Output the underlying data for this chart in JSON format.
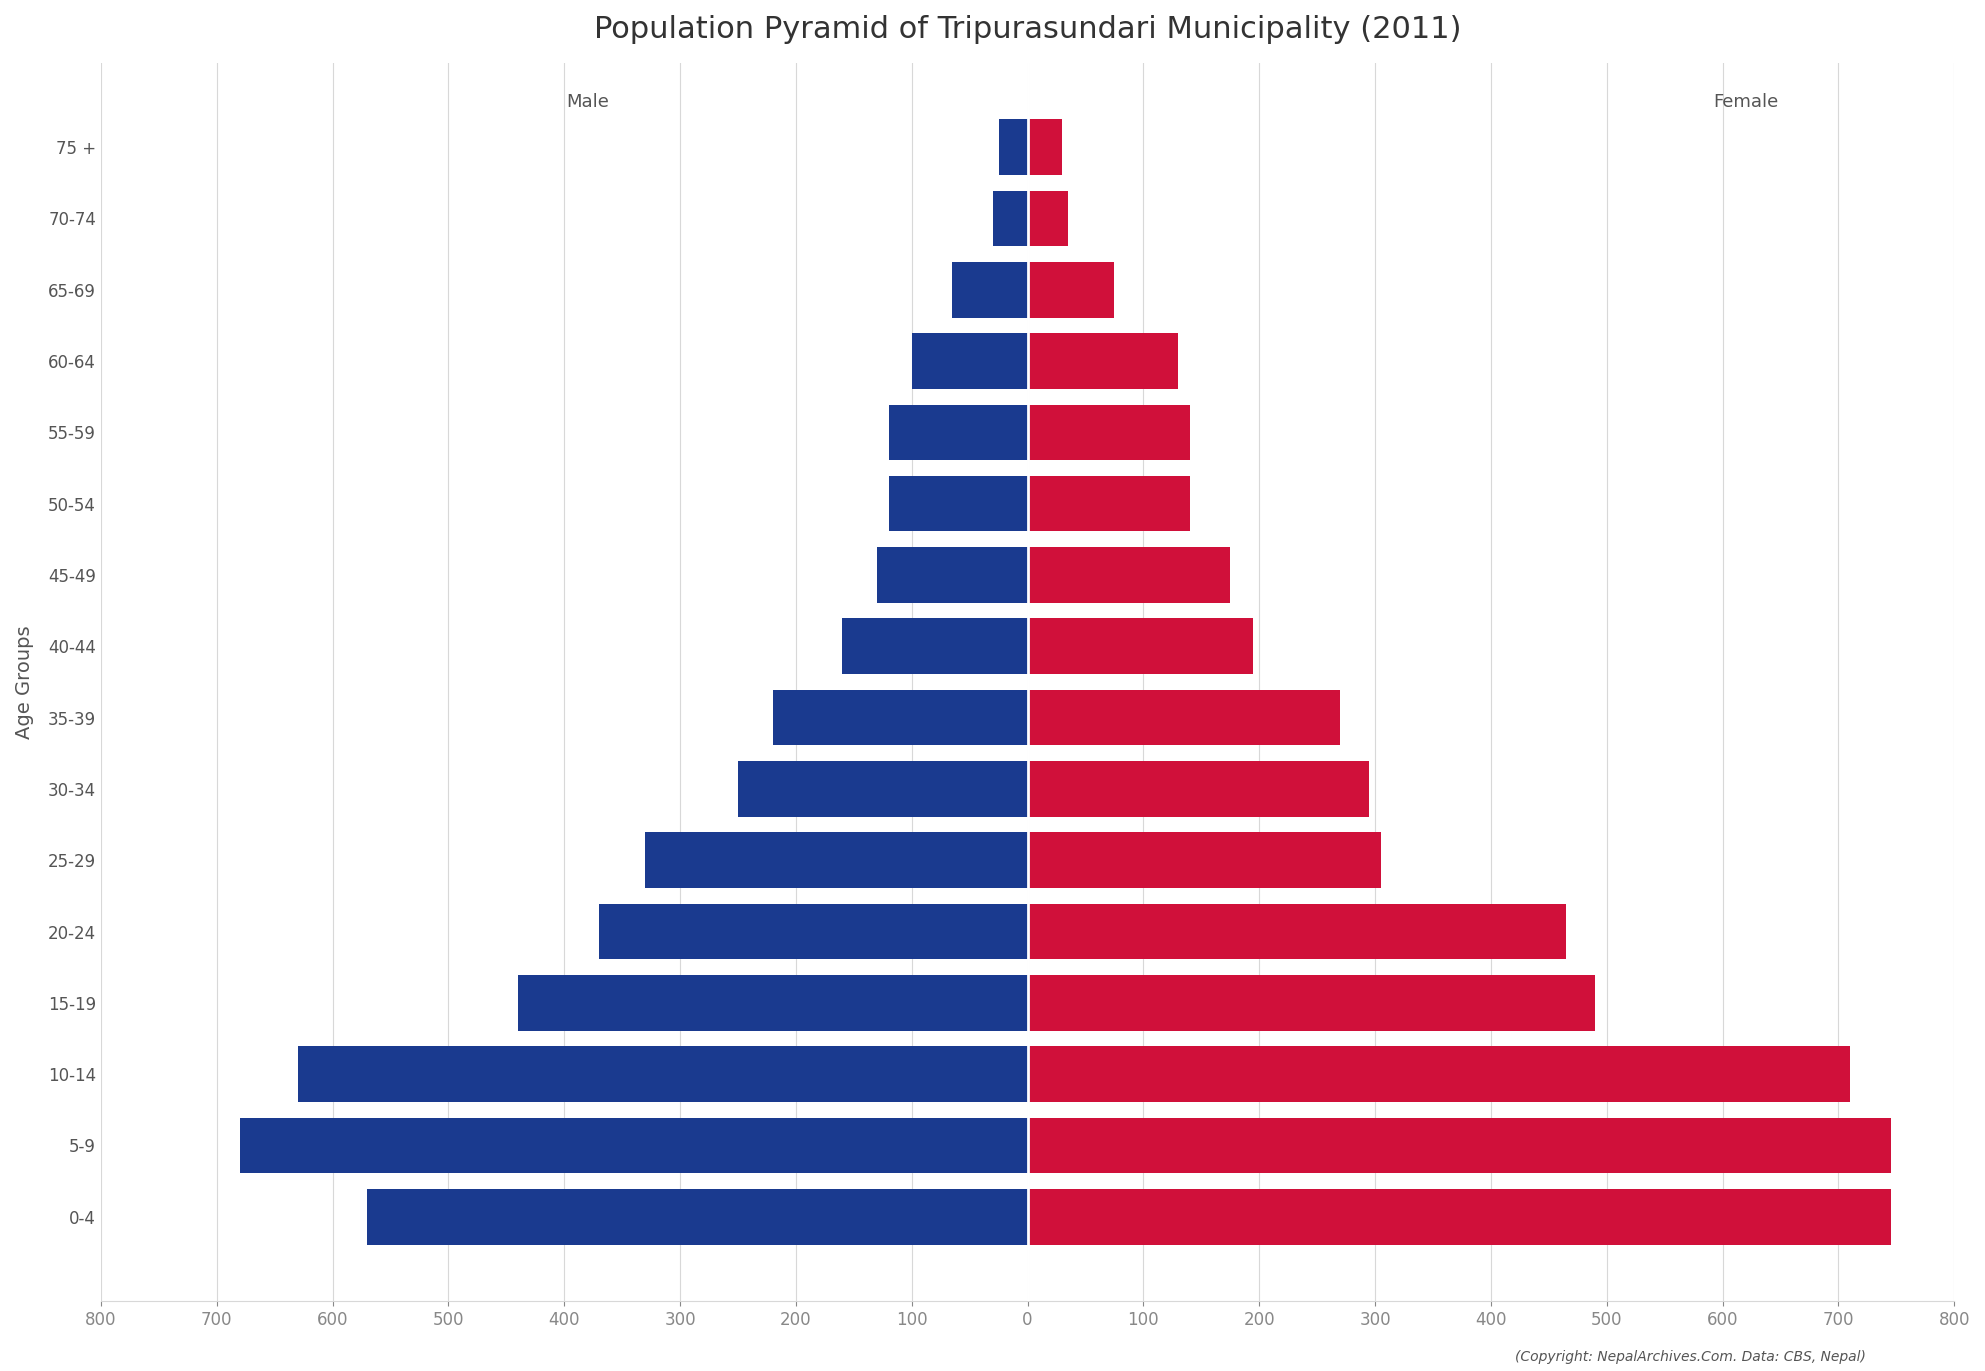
{
  "title": "Population Pyramid of Tripurasundari Municipality (2011)",
  "age_groups": [
    "0-4",
    "5-9",
    "10-14",
    "15-19",
    "20-24",
    "25-29",
    "30-34",
    "35-39",
    "40-44",
    "45-49",
    "50-54",
    "55-59",
    "60-64",
    "65-69",
    "70-74",
    "75 +"
  ],
  "male": [
    570,
    680,
    630,
    440,
    370,
    330,
    250,
    220,
    160,
    130,
    120,
    120,
    100,
    65,
    30,
    25
  ],
  "female": [
    745,
    745,
    710,
    490,
    465,
    305,
    295,
    270,
    195,
    175,
    140,
    140,
    130,
    75,
    35,
    30
  ],
  "male_color": "#1a3a8f",
  "female_color": "#d0103a",
  "xlabel_left": "Male",
  "xlabel_right": "Female",
  "ylabel": "Age Groups",
  "xlim": 800,
  "background_color": "#ffffff",
  "grid_color": "#d8d8d8",
  "tick_color": "#888888",
  "label_color": "#555555",
  "copyright_text": "(Copyright: NepalArchives.Com. Data: CBS, Nepal)",
  "bar_height": 0.78,
  "title_fontsize": 22,
  "axis_label_fontsize": 13,
  "tick_fontsize": 12,
  "ylabel_fontsize": 14
}
